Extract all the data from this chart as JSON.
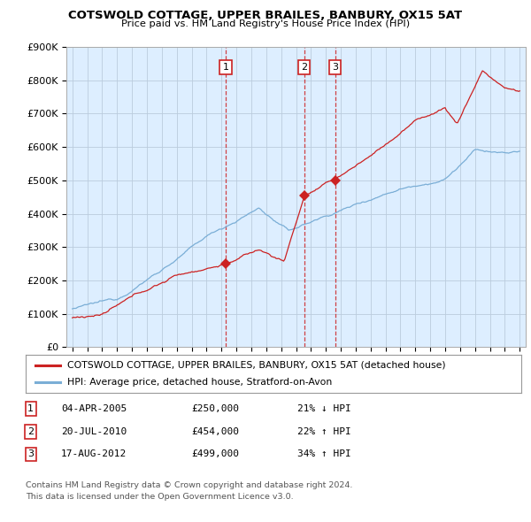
{
  "title": "COTSWOLD COTTAGE, UPPER BRAILES, BANBURY, OX15 5AT",
  "subtitle": "Price paid vs. HM Land Registry's House Price Index (HPI)",
  "legend_line1": "COTSWOLD COTTAGE, UPPER BRAILES, BANBURY, OX15 5AT (detached house)",
  "legend_line2": "HPI: Average price, detached house, Stratford-on-Avon",
  "footer1": "Contains HM Land Registry data © Crown copyright and database right 2024.",
  "footer2": "This data is licensed under the Open Government Licence v3.0.",
  "sales": [
    {
      "num": 1,
      "date": "04-APR-2005",
      "price": "£250,000",
      "pct": "21% ↓ HPI",
      "year": 2005.28,
      "value": 250000
    },
    {
      "num": 2,
      "date": "20-JUL-2010",
      "price": "£454,000",
      "pct": "22% ↑ HPI",
      "year": 2010.55,
      "value": 454000
    },
    {
      "num": 3,
      "date": "17-AUG-2012",
      "price": "£499,000",
      "pct": "34% ↑ HPI",
      "year": 2012.63,
      "value": 499000
    }
  ],
  "red_color": "#cc2222",
  "blue_color": "#7aaed6",
  "chart_bg": "#ddeeff",
  "grid_color": "#bbccdd",
  "ylim_max": 900000,
  "xlim_start": 1994.6,
  "xlim_end": 2025.4
}
